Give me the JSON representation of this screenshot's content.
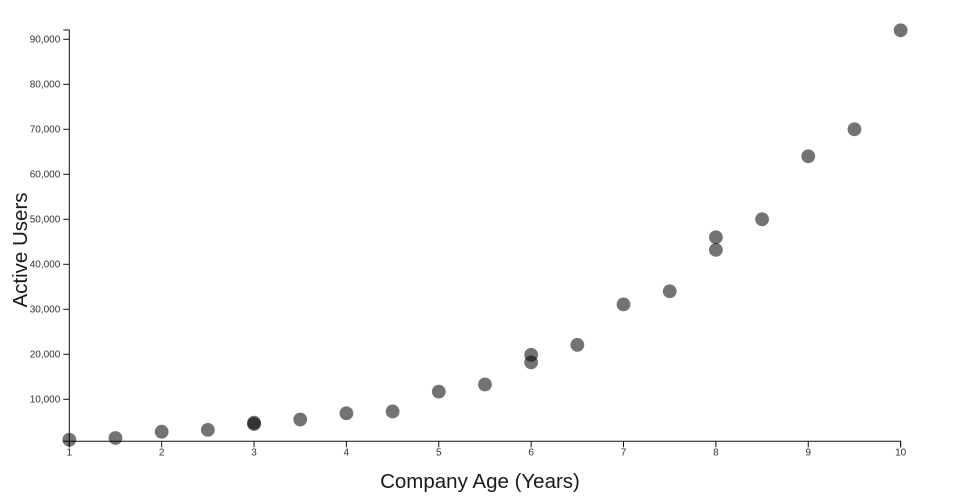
{
  "chart_data": {
    "type": "scatter",
    "title": "",
    "xlabel": "Company Age (Years)",
    "ylabel": "Active Users",
    "xlim": [
      1,
      10
    ],
    "ylim": [
      0,
      92500
    ],
    "grid": false,
    "legend": null,
    "x_ticks": [
      1,
      2,
      3,
      4,
      5,
      6,
      7,
      8,
      9,
      10
    ],
    "x_tick_labels": [
      "1",
      "2",
      "3",
      "4",
      "5",
      "6",
      "7",
      "8",
      "9",
      "10"
    ],
    "y_ticks": [
      10000,
      20000,
      30000,
      40000,
      50000,
      60000,
      70000,
      80000,
      90000
    ],
    "y_tick_labels": [
      "10,000",
      "20,000",
      "30,000",
      "40,000",
      "50,000",
      "60,000",
      "70,000",
      "80,000",
      "90,000"
    ],
    "points": [
      {
        "x": 1.0,
        "y": 1000
      },
      {
        "x": 1.5,
        "y": 1400
      },
      {
        "x": 2.0,
        "y": 2800
      },
      {
        "x": 2.5,
        "y": 3200
      },
      {
        "x": 3.0,
        "y": 4500
      },
      {
        "x": 3.0,
        "y": 4800
      },
      {
        "x": 3.5,
        "y": 5500
      },
      {
        "x": 4.0,
        "y": 6900
      },
      {
        "x": 4.5,
        "y": 7300
      },
      {
        "x": 5.0,
        "y": 11700
      },
      {
        "x": 5.5,
        "y": 13300
      },
      {
        "x": 6.0,
        "y": 18200
      },
      {
        "x": 6.0,
        "y": 19900
      },
      {
        "x": 6.5,
        "y": 22100
      },
      {
        "x": 7.0,
        "y": 31100
      },
      {
        "x": 7.5,
        "y": 34000
      },
      {
        "x": 8.0,
        "y": 43200
      },
      {
        "x": 8.0,
        "y": 46000
      },
      {
        "x": 8.5,
        "y": 50000
      },
      {
        "x": 9.0,
        "y": 64000
      },
      {
        "x": 9.5,
        "y": 70000
      },
      {
        "x": 10.0,
        "y": 92000
      }
    ],
    "colors": {
      "marker": "#000000",
      "marker_opacity": 0.55,
      "axis_line": "#111111",
      "tick_text": "#333333",
      "axis_label_text": "#1a1a1a",
      "background": "#ffffff"
    }
  }
}
